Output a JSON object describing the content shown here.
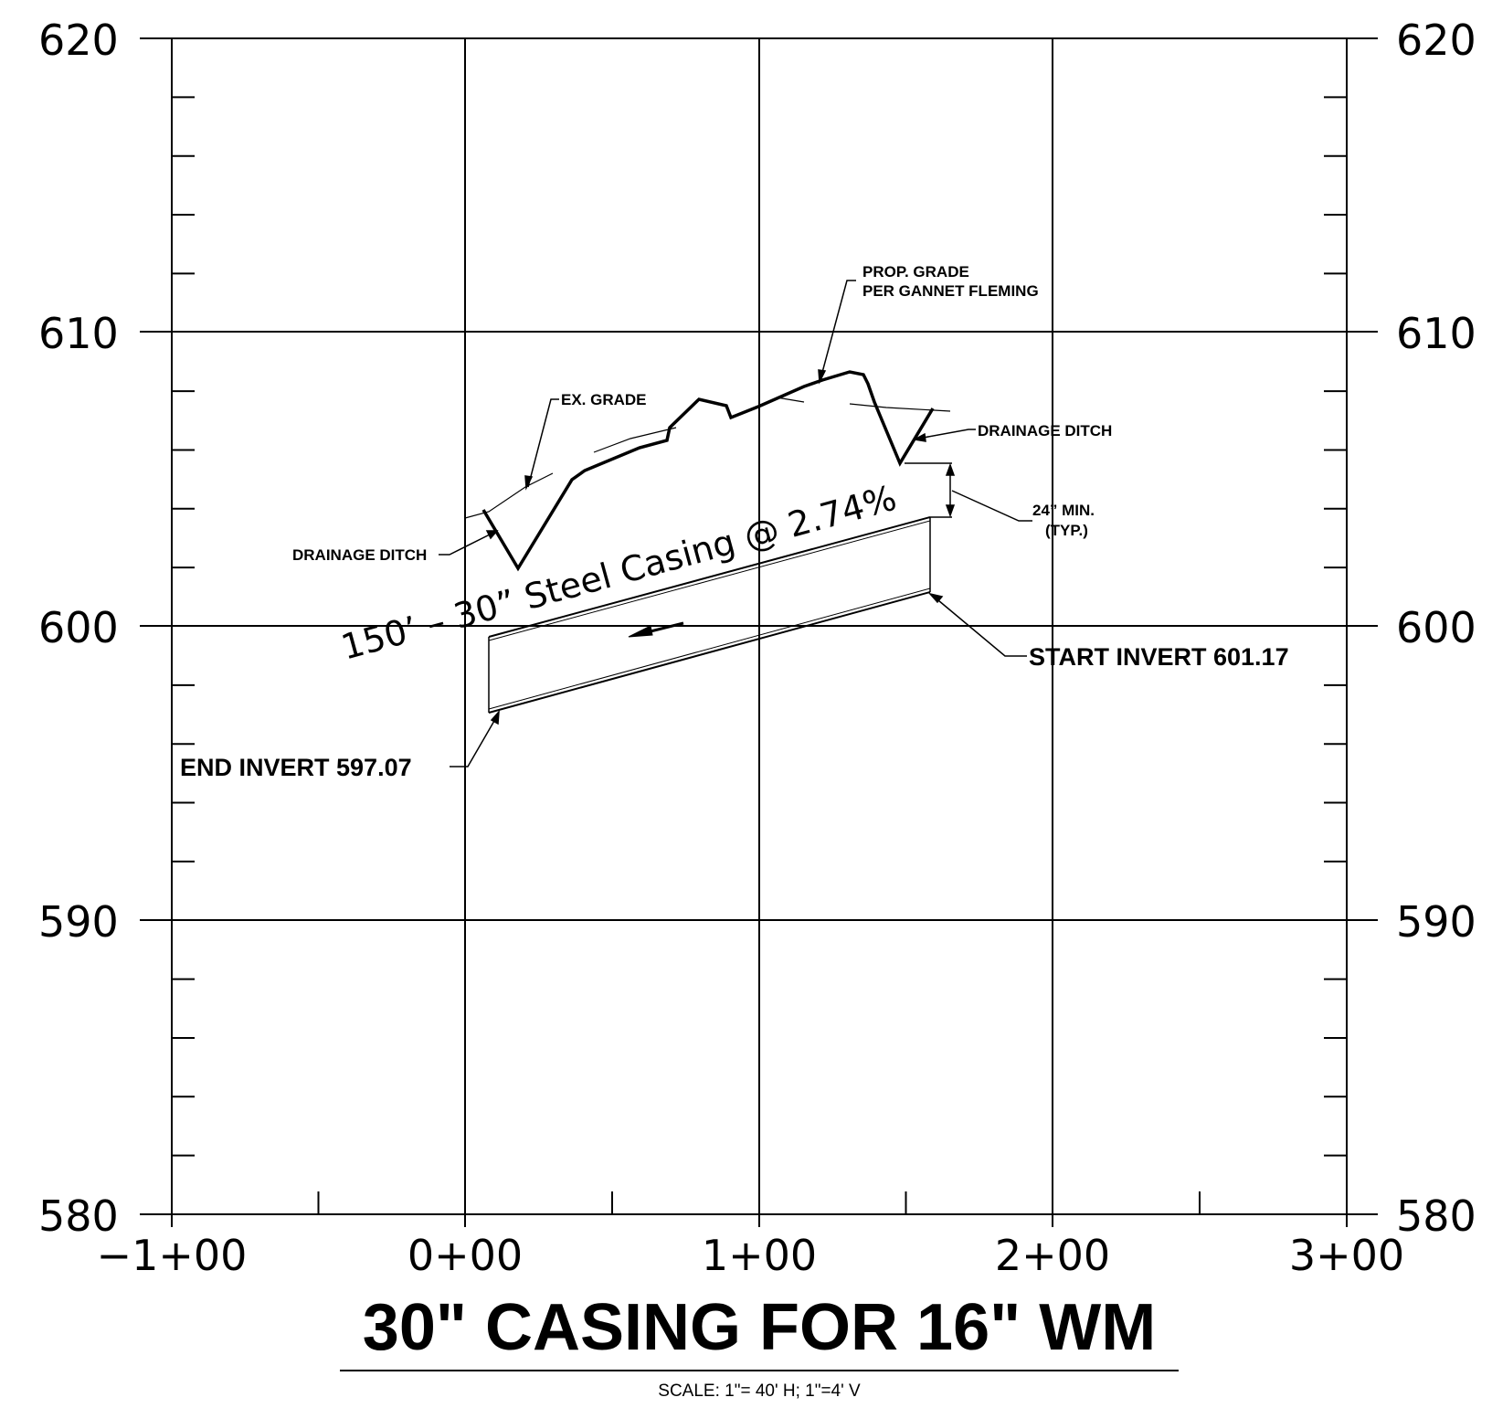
{
  "title": "30\" CASING FOR 16\" WM",
  "scale": "SCALE: 1\"= 40' H; 1\"=4' V",
  "y_axis": {
    "ticks": [
      "620",
      "610",
      "600",
      "590",
      "580"
    ],
    "range": [
      580,
      620
    ],
    "minor_step": 2
  },
  "x_axis": {
    "ticks": [
      "−1+00",
      "0+00",
      "1+00",
      "2+00",
      "3+00"
    ],
    "range": [
      -100,
      300
    ]
  },
  "annotations": {
    "ex_grade": "EX. GRADE",
    "prop_grade_line1": "PROP. GRADE",
    "prop_grade_line2": "PER GANNET FLEMING",
    "drainage_ditch_left": "DRAINAGE DITCH",
    "drainage_ditch_right": "DRAINAGE DITCH",
    "min_cover_line1": "24” MIN.",
    "min_cover_line2": "(TYP.)",
    "casing": "150’ – 30” Steel Casing @ 2.74%",
    "start_invert": "START INVERT 601.17",
    "end_invert": "END INVERT 597.07"
  },
  "profile": {
    "casing_start": {
      "station": 158,
      "invert": 601.17
    },
    "casing_end": {
      "station": 8,
      "invert": 597.07
    },
    "slope": "2.74%"
  }
}
